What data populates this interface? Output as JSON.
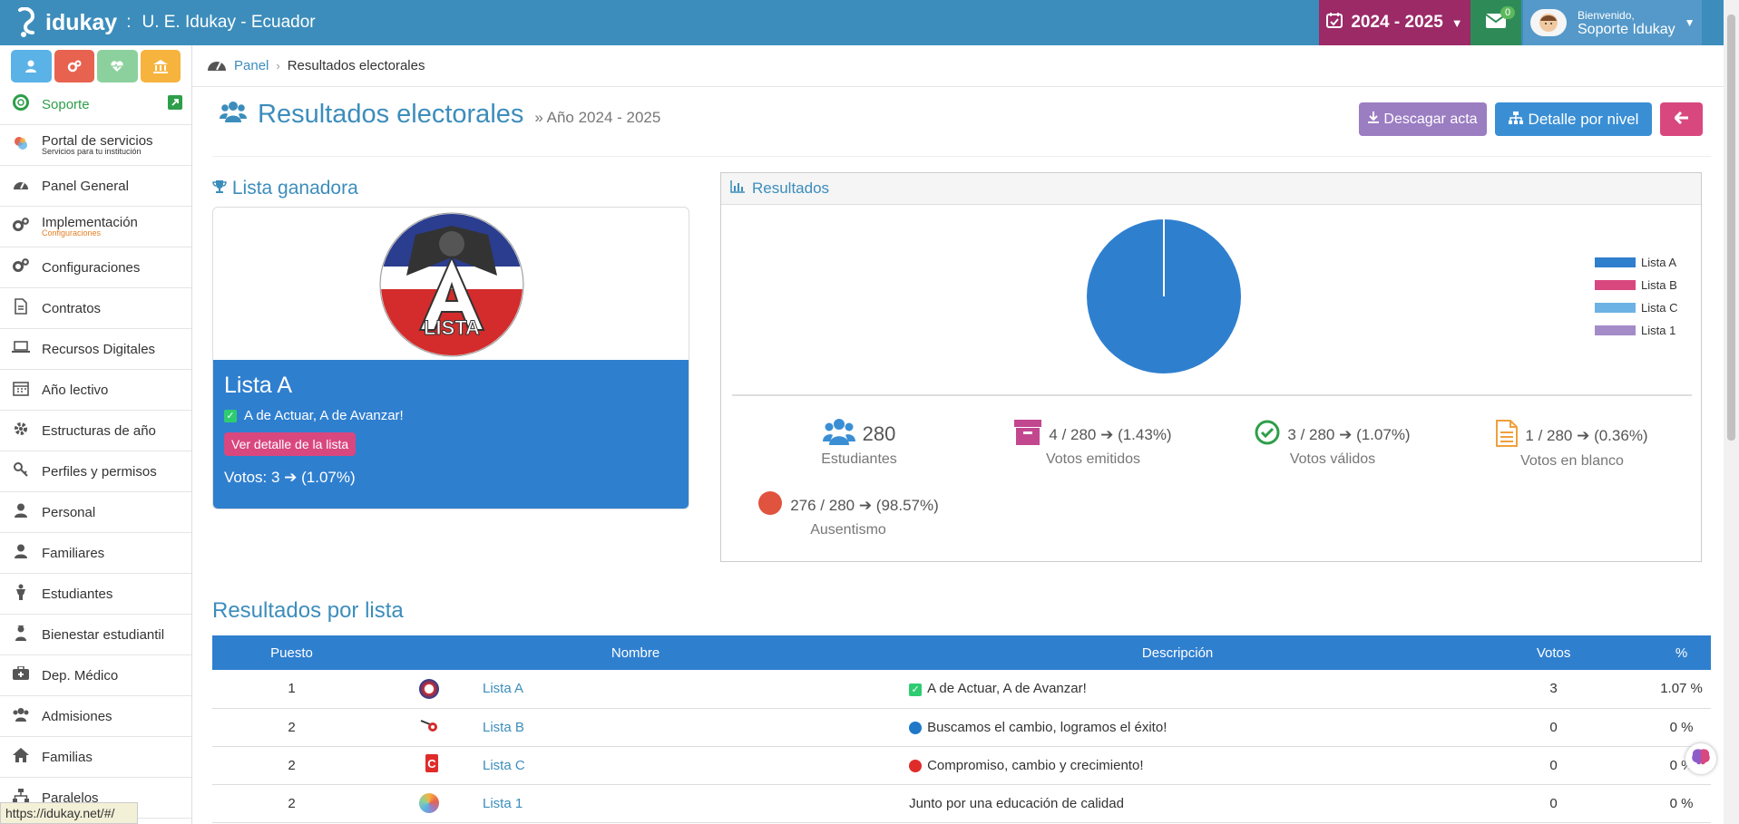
{
  "topbar": {
    "brand": "idukay",
    "separator": ":",
    "school": "U. E. Idukay - Ecuador",
    "year": "2024 - 2025",
    "messages_count": "0",
    "welcome": "Bienvenido,",
    "user": "Soporte Idukay"
  },
  "sidebar": {
    "items": [
      {
        "label": "Soporte",
        "sub": ""
      },
      {
        "label": "Portal de servicios",
        "sub": "Servicios para tu institución"
      },
      {
        "label": "Panel General",
        "sub": ""
      },
      {
        "label": "Implementación",
        "sub": "Configuraciones"
      },
      {
        "label": "Configuraciones",
        "sub": ""
      },
      {
        "label": "Contratos",
        "sub": ""
      },
      {
        "label": "Recursos Digitales",
        "sub": ""
      },
      {
        "label": "Año lectivo",
        "sub": ""
      },
      {
        "label": "Estructuras de año",
        "sub": ""
      },
      {
        "label": "Perfiles y permisos",
        "sub": ""
      },
      {
        "label": "Personal",
        "sub": ""
      },
      {
        "label": "Familiares",
        "sub": ""
      },
      {
        "label": "Estudiantes",
        "sub": ""
      },
      {
        "label": "Bienestar estudiantil",
        "sub": ""
      },
      {
        "label": "Dep. Médico",
        "sub": ""
      },
      {
        "label": "Admisiones",
        "sub": ""
      },
      {
        "label": "Familias",
        "sub": ""
      },
      {
        "label": "Paralelos",
        "sub": ""
      }
    ]
  },
  "status_url": "https://idukay.net/#/",
  "breadcrumb": {
    "home": "Panel",
    "current": "Resultados electorales"
  },
  "page": {
    "title": "Resultados electorales",
    "subtitle": "» Año 2024 - 2025",
    "download_btn": "Descagar acta",
    "detail_btn": "Detalle por nivel"
  },
  "winner": {
    "heading": "Lista ganadora",
    "name": "Lista A",
    "slogan": "A de Actuar, A de Avanzar!",
    "detail_btn": "Ver detalle de la lista",
    "votes": "Votos: 3 ➔ (1.07%)",
    "logo_text": "LISTA"
  },
  "results": {
    "heading": "Resultados",
    "legend": [
      {
        "name": "Lista A",
        "color": "#2f7fcf"
      },
      {
        "name": "Lista B",
        "color": "#d9477f"
      },
      {
        "name": "Lista C",
        "color": "#6cb2e4"
      },
      {
        "name": "Lista 1",
        "color": "#a48cc9"
      }
    ],
    "stats": {
      "students": {
        "value": "280",
        "label": "Estudiantes"
      },
      "emitted": {
        "value": "4 / 280 ➔ (1.43%)",
        "label": "Votos emitidos"
      },
      "valid": {
        "value": "3 / 280 ➔ (1.07%)",
        "label": "Votos válidos"
      },
      "blank": {
        "value": "1 / 280 ➔ (0.36%)",
        "label": "Votos en blanco"
      },
      "absent": {
        "value": "276 / 280 ➔ (98.57%)",
        "label": "Ausentismo"
      }
    }
  },
  "chart_data": {
    "type": "pie",
    "categories": [
      "Lista A",
      "Lista B",
      "Lista C",
      "Lista 1"
    ],
    "values": [
      3,
      0,
      0,
      0
    ],
    "colors": [
      "#2f7fcf",
      "#d9477f",
      "#6cb2e4",
      "#a48cc9"
    ],
    "legend": "right"
  },
  "table": {
    "title": "Resultados por lista",
    "headers": [
      "Puesto",
      "Nombre",
      "Descripción",
      "Votos",
      "%"
    ],
    "rows": [
      {
        "rank": "1",
        "name": "Lista A",
        "desc": "A de Actuar, A de Avanzar!",
        "votes": "3",
        "pct": "1.07 %"
      },
      {
        "rank": "2",
        "name": "Lista B",
        "desc": "Buscamos el cambio, logramos el éxito!",
        "votes": "0",
        "pct": "0 %"
      },
      {
        "rank": "2",
        "name": "Lista C",
        "desc": "Compromiso, cambio y crecimiento!",
        "votes": "0",
        "pct": "0 %"
      },
      {
        "rank": "2",
        "name": "Lista 1",
        "desc": "Junto por una educación de calidad",
        "votes": "0",
        "pct": "0 %"
      }
    ]
  }
}
